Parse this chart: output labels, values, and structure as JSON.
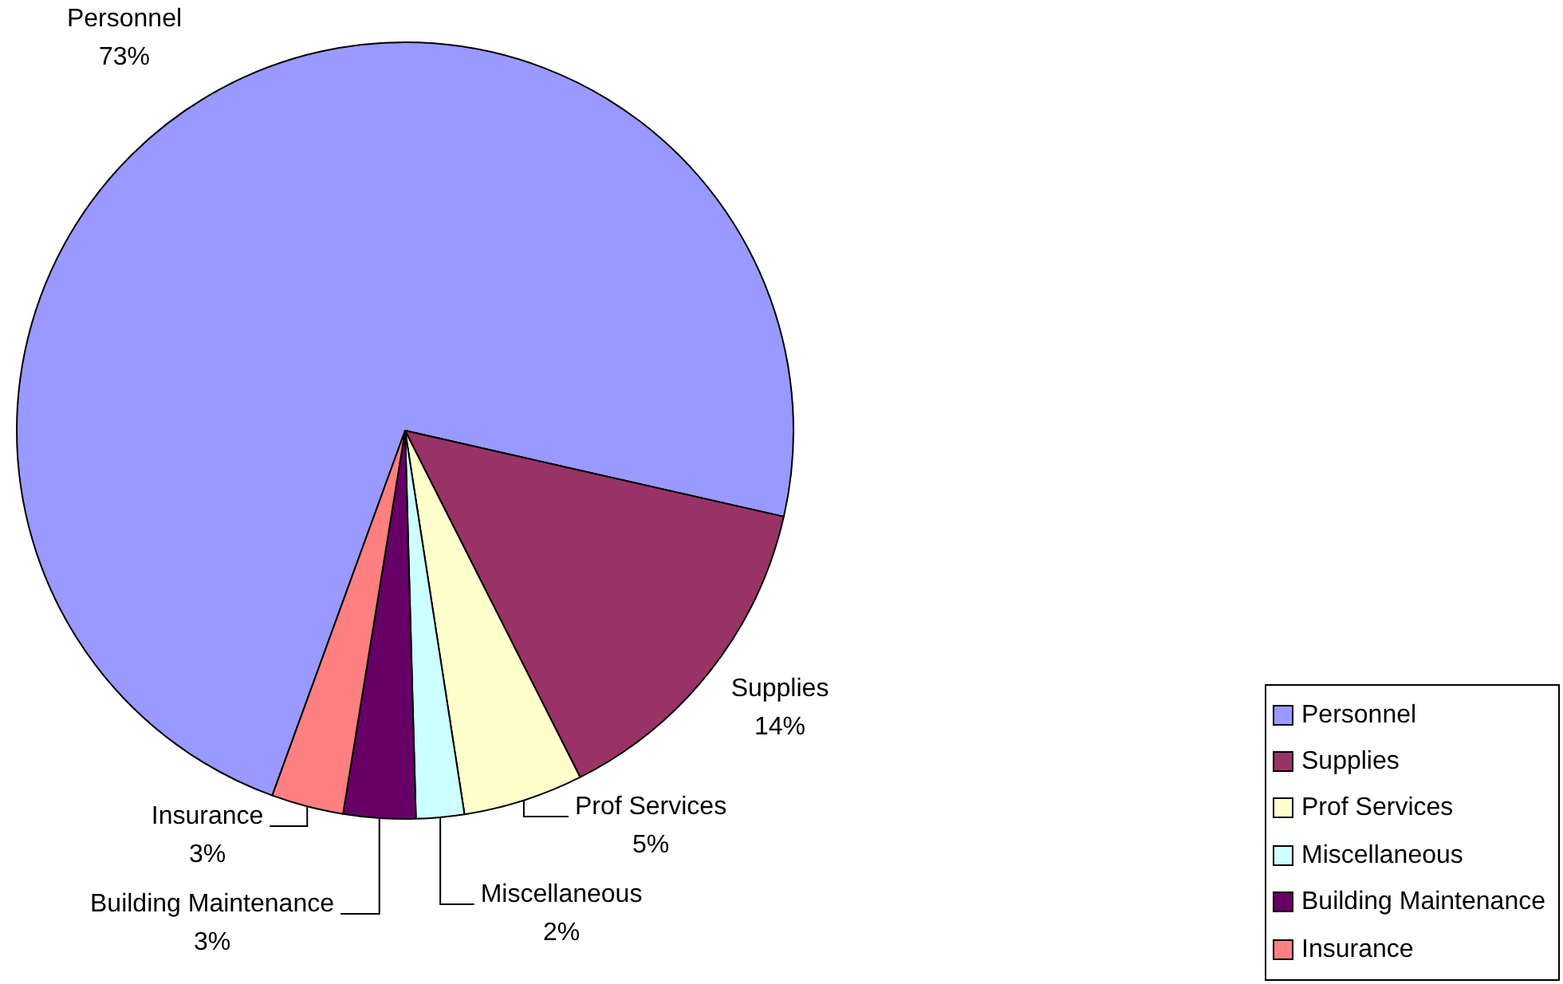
{
  "chart_data": {
    "type": "pie",
    "categories": [
      "Personnel",
      "Supplies",
      "Prof Services",
      "Miscellaneous",
      "Building Maintenance",
      "Insurance"
    ],
    "values": [
      73,
      14,
      5,
      2,
      3,
      3
    ],
    "colors": [
      "#9999ff",
      "#993366",
      "#ffffcc",
      "#ccffff",
      "#660066",
      "#ff8080"
    ],
    "value_labels": [
      "73%",
      "14%",
      "5%",
      "2%",
      "3%",
      "3%"
    ],
    "legend": "bottom right"
  }
}
